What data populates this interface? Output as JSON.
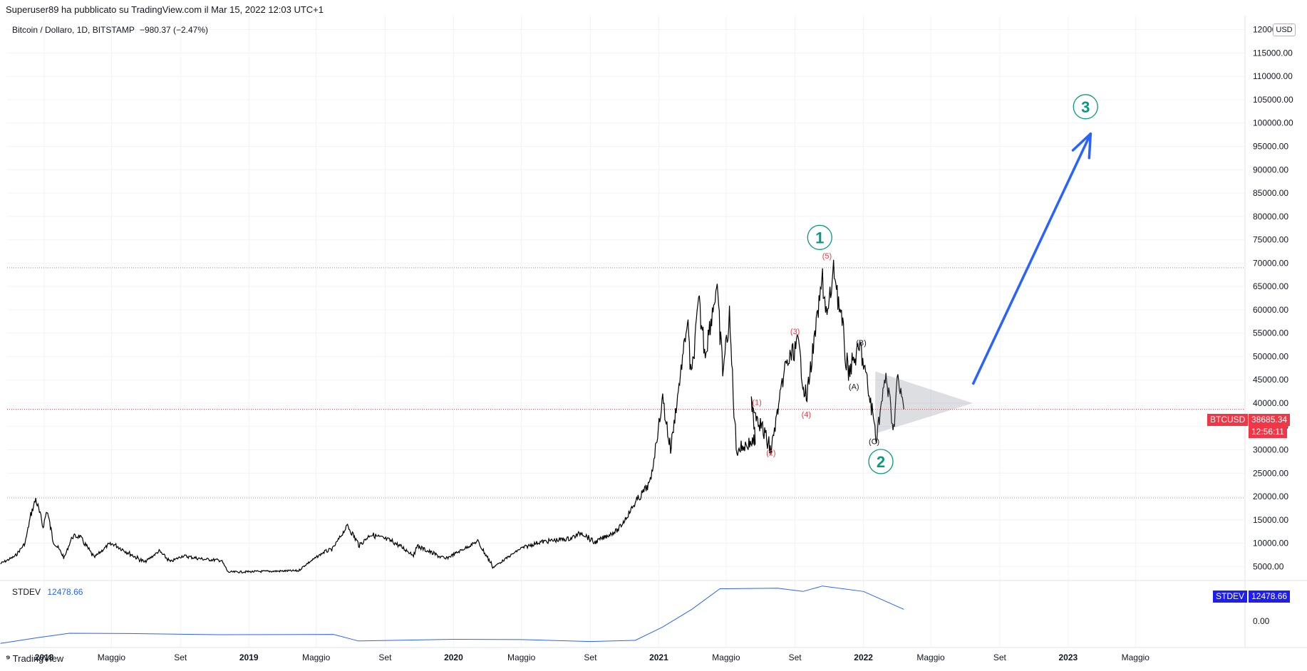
{
  "header": {
    "publisher_line": "Superuser89 ha pubblicato su TradingView.com il Mar 15, 2022 12:03 UTC+1"
  },
  "legend": {
    "symbol": "Bitcoin / Dollaro, 1D, BITSTAMP",
    "change": "−980.37 (−2.47%)"
  },
  "currency": "USD",
  "indicator": {
    "name": "STDEV",
    "value": "12478.66",
    "tag_name": "STDEV",
    "tag_value": "12478.66",
    "zero_label": "0.00",
    "color": "#2962ff"
  },
  "price_tag": {
    "symbol": "BTCUSD",
    "price": "38685.34",
    "countdown": "12:56:11",
    "color": "#f23645"
  },
  "footer": {
    "brand": "TradingView"
  },
  "chart_data": {
    "type": "line",
    "title": "Bitcoin / Dollaro, 1D, BITSTAMP",
    "ylabel": "USD",
    "ylim": [
      2000,
      123000
    ],
    "y_ticks": [
      "120000.00",
      "115000.00",
      "110000.00",
      "105000.00",
      "100000.00",
      "95000.00",
      "90000.00",
      "85000.00",
      "80000.00",
      "75000.00",
      "70000.00",
      "65000.00",
      "60000.00",
      "55000.00",
      "50000.00",
      "45000.00",
      "40000.00",
      "35000.00",
      "30000.00",
      "25000.00",
      "20000.00",
      "15000.00",
      "10000.00",
      "5000.00"
    ],
    "x_ticks": [
      {
        "label": "2018",
        "date": "2018-01-01",
        "bold": true
      },
      {
        "label": "Maggio",
        "date": "2018-05-01",
        "bold": false
      },
      {
        "label": "Set",
        "date": "2018-09-01",
        "bold": false
      },
      {
        "label": "2019",
        "date": "2019-01-01",
        "bold": true
      },
      {
        "label": "Maggio",
        "date": "2019-05-01",
        "bold": false
      },
      {
        "label": "Set",
        "date": "2019-09-01",
        "bold": false
      },
      {
        "label": "2020",
        "date": "2020-01-01",
        "bold": true
      },
      {
        "label": "Maggio",
        "date": "2020-05-01",
        "bold": false
      },
      {
        "label": "Set",
        "date": "2020-09-01",
        "bold": false
      },
      {
        "label": "2021",
        "date": "2021-01-01",
        "bold": true
      },
      {
        "label": "Maggio",
        "date": "2021-05-01",
        "bold": false
      },
      {
        "label": "Set",
        "date": "2021-09-01",
        "bold": false
      },
      {
        "label": "2022",
        "date": "2022-01-01",
        "bold": true
      },
      {
        "label": "Maggio",
        "date": "2022-05-01",
        "bold": false
      },
      {
        "label": "Set",
        "date": "2022-09-01",
        "bold": false
      },
      {
        "label": "2023",
        "date": "2023-01-01",
        "bold": true
      },
      {
        "label": "Maggio",
        "date": "2023-05-01",
        "bold": false
      }
    ],
    "series": [
      {
        "color": "#000000",
        "points": [
          [
            "2017-10-15",
            5600
          ],
          [
            "2017-11-10",
            7200
          ],
          [
            "2017-11-28",
            10000
          ],
          [
            "2017-12-08",
            16000
          ],
          [
            "2017-12-17",
            19500
          ],
          [
            "2017-12-30",
            13500
          ],
          [
            "2018-01-06",
            17100
          ],
          [
            "2018-01-17",
            10500
          ],
          [
            "2018-02-06",
            6900
          ],
          [
            "2018-02-20",
            11400
          ],
          [
            "2018-03-05",
            11500
          ],
          [
            "2018-03-31",
            6900
          ],
          [
            "2018-04-25",
            9600
          ],
          [
            "2018-05-05",
            9800
          ],
          [
            "2018-06-29",
            5900
          ],
          [
            "2018-07-25",
            8300
          ],
          [
            "2018-08-14",
            6000
          ],
          [
            "2018-09-05",
            7300
          ],
          [
            "2018-10-10",
            6600
          ],
          [
            "2018-11-13",
            6300
          ],
          [
            "2018-11-25",
            3800
          ],
          [
            "2019-03-31",
            4100
          ],
          [
            "2019-04-10",
            5200
          ],
          [
            "2019-05-15",
            8100
          ],
          [
            "2019-05-30",
            8700
          ],
          [
            "2019-06-26",
            13800
          ],
          [
            "2019-07-17",
            9500
          ],
          [
            "2019-08-06",
            11900
          ],
          [
            "2019-09-15",
            10300
          ],
          [
            "2019-10-24",
            7400
          ],
          [
            "2019-10-26",
            9500
          ],
          [
            "2019-12-17",
            6600
          ],
          [
            "2020-02-13",
            10400
          ],
          [
            "2020-03-12",
            4850
          ],
          [
            "2020-04-29",
            8800
          ],
          [
            "2020-06-01",
            10200
          ],
          [
            "2020-07-27",
            11000
          ],
          [
            "2020-08-17",
            12300
          ],
          [
            "2020-09-08",
            10100
          ],
          [
            "2020-10-21",
            12900
          ],
          [
            "2020-11-20",
            18600
          ],
          [
            "2020-12-17",
            23000
          ],
          [
            "2021-01-08",
            41000
          ],
          [
            "2021-01-22",
            30000
          ],
          [
            "2021-02-21",
            57500
          ],
          [
            "2021-02-28",
            45000
          ],
          [
            "2021-03-13",
            61500
          ],
          [
            "2021-03-25",
            51000
          ],
          [
            "2021-04-14",
            64800
          ],
          [
            "2021-04-25",
            47000
          ],
          [
            "2021-05-07",
            58000
          ],
          [
            "2021-05-19",
            30000
          ],
          [
            "2021-06-22",
            32000
          ],
          [
            "2021-06-15",
            40500
          ],
          [
            "2021-07-20",
            29800
          ],
          [
            "2021-08-14",
            47500
          ],
          [
            "2021-09-06",
            52800
          ],
          [
            "2021-09-21",
            40500
          ],
          [
            "2021-10-20",
            66800
          ],
          [
            "2021-10-28",
            58000
          ],
          [
            "2021-11-10",
            69000
          ],
          [
            "2021-12-04",
            46800
          ],
          [
            "2021-12-27",
            51800
          ],
          [
            "2022-01-24",
            33000
          ],
          [
            "2022-02-10",
            45800
          ],
          [
            "2022-02-24",
            34500
          ],
          [
            "2022-03-02",
            45200
          ],
          [
            "2022-03-14",
            38685
          ]
        ]
      }
    ],
    "stdev_series": [
      [
        "2017-10-15",
        0
      ],
      [
        "2017-12-20",
        2100
      ],
      [
        "2018-02-15",
        3700
      ],
      [
        "2018-06-01",
        3600
      ],
      [
        "2018-11-10",
        3200
      ],
      [
        "2019-06-01",
        3300
      ],
      [
        "2019-07-15",
        900
      ],
      [
        "2020-01-01",
        1500
      ],
      [
        "2020-05-01",
        1400
      ],
      [
        "2020-09-01",
        700
      ],
      [
        "2020-11-20",
        1100
      ],
      [
        "2021-01-08",
        6000
      ],
      [
        "2021-03-01",
        12500
      ],
      [
        "2021-04-20",
        20000
      ],
      [
        "2021-08-01",
        20200
      ],
      [
        "2021-09-15",
        19000
      ],
      [
        "2021-10-20",
        21000
      ],
      [
        "2022-01-01",
        19000
      ],
      [
        "2022-03-14",
        12478.66
      ]
    ],
    "stdev_ylim": [
      -1500,
      23000
    ],
    "horizontal_levels": [
      69000,
      19700
    ],
    "last_price": 38685.34,
    "wave_labels": [
      {
        "text": "1",
        "date": "2021-10-15",
        "price": 75500,
        "color": "#089981",
        "circle": true
      },
      {
        "text": "2",
        "date": "2022-02-01",
        "price": 27500,
        "color": "#089981",
        "circle": true
      },
      {
        "text": "3",
        "date": "2023-02-01",
        "price": 103500,
        "color": "#089981",
        "circle": true
      },
      {
        "text": "(1)",
        "date": "2021-06-25",
        "price": 40200,
        "color": "#f23645",
        "circle": false
      },
      {
        "text": "(2)",
        "date": "2021-07-20",
        "price": 29400,
        "color": "#f23645",
        "circle": false
      },
      {
        "text": "(3)",
        "date": "2021-09-01",
        "price": 55400,
        "color": "#f23645",
        "circle": false
      },
      {
        "text": "(4)",
        "date": "2021-09-21",
        "price": 37600,
        "color": "#f23645",
        "circle": false
      },
      {
        "text": "(5)",
        "date": "2021-10-28",
        "price": 71600,
        "color": "#f23645",
        "circle": false
      },
      {
        "text": "(A)",
        "date": "2021-12-15",
        "price": 43600,
        "color": "#131722",
        "circle": false
      },
      {
        "text": "(B)",
        "date": "2021-12-28",
        "price": 53000,
        "color": "#131722",
        "circle": false
      },
      {
        "text": "(C)",
        "date": "2022-01-20",
        "price": 31800,
        "color": "#131722",
        "circle": false
      }
    ],
    "triangle": [
      [
        "2022-01-22",
        46800
      ],
      [
        "2022-01-22",
        33500
      ],
      [
        "2022-07-15",
        40000
      ]
    ],
    "arrow": {
      "from": [
        "2022-07-15",
        44000
      ],
      "to": [
        "2023-02-10",
        97700
      ],
      "color": "#2962ff"
    }
  }
}
